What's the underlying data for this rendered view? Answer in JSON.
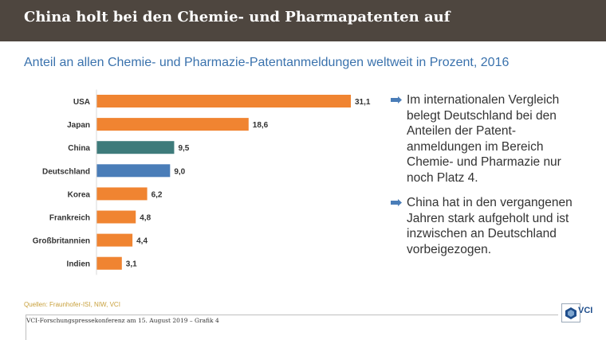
{
  "header": {
    "title": "China holt bei den Chemie- und Pharmapatenten auf"
  },
  "colors": {
    "header_bg": "#4e463f",
    "bar_default": "#f08431",
    "bar_china": "#3e7b7b",
    "bar_germany": "#4a7db8",
    "accent_text": "#3a72ad",
    "bullet_icon": "#4a7db8"
  },
  "chart_data": {
    "type": "bar",
    "orientation": "horizontal",
    "title": "Anteil an allen Chemie- und Pharmazie-Patentanmeldungen weltweit in Prozent, 2016",
    "categories": [
      "USA",
      "Japan",
      "China",
      "Deutschland",
      "Korea",
      "Frankreich",
      "Großbritannien",
      "Indien"
    ],
    "values": [
      31.1,
      18.6,
      9.5,
      9.0,
      6.2,
      4.8,
      4.4,
      3.1
    ],
    "value_labels": [
      "31,1",
      "18,6",
      "9,5",
      "9,0",
      "6,2",
      "4,8",
      "4,4",
      "3,1"
    ],
    "highlight": {
      "China": "#3e7b7b",
      "Deutschland": "#4a7db8"
    },
    "xlim": [
      0,
      33
    ],
    "grid": false,
    "legend": "none"
  },
  "bullets": [
    "Im internationalen Vergleich belegt Deutschland bei den Anteilen der Patent-anmeldungen im Bereich Chemie- und Pharmazie nur noch Platz 4.",
    "China hat in den vergangenen Jahren stark aufgeholt und ist inzwischen an Deutschland vorbeigezogen."
  ],
  "source": "Quellen: Fraunhofer-ISI, NIW, VCI",
  "footer": "VCI-Forschungspressekonferenz am 15. August 2019 – Grafik 4",
  "logo": {
    "text": "VCI",
    "icon": "vci-logo-icon"
  }
}
